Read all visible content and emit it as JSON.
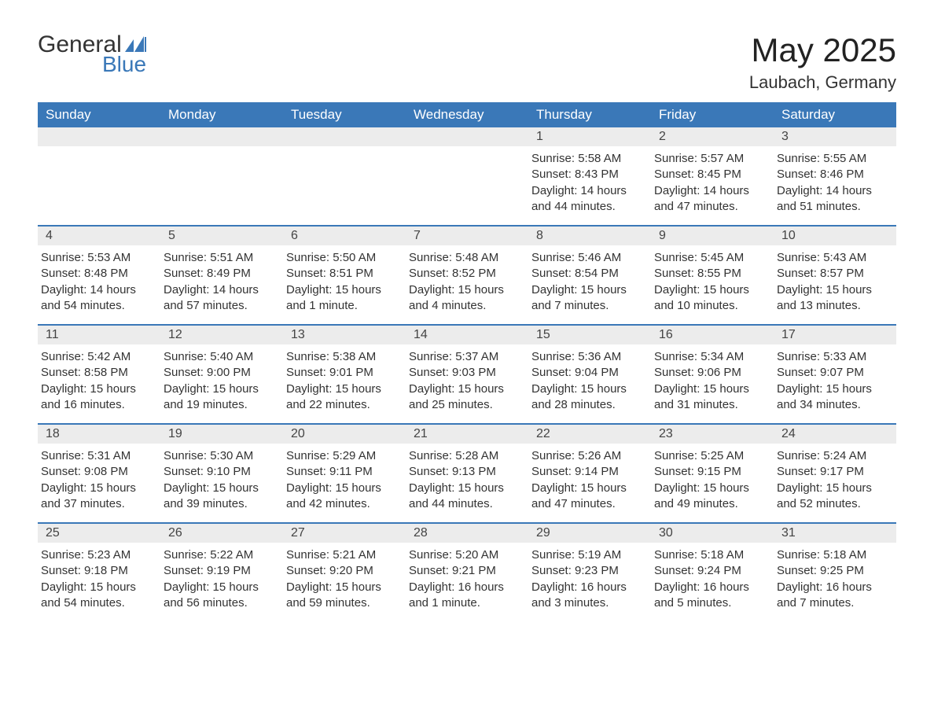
{
  "logo": {
    "general": "General",
    "blue": "Blue"
  },
  "title": "May 2025",
  "location": "Laubach, Germany",
  "colors": {
    "header_bg": "#3a78b8",
    "header_text": "#ffffff",
    "daynum_bg": "#ececec",
    "border": "#3a78b8",
    "text": "#333333",
    "logo_blue": "#3a78b8"
  },
  "weekdays": [
    "Sunday",
    "Monday",
    "Tuesday",
    "Wednesday",
    "Thursday",
    "Friday",
    "Saturday"
  ],
  "weeks": [
    [
      null,
      null,
      null,
      null,
      {
        "n": "1",
        "sunrise": "Sunrise: 5:58 AM",
        "sunset": "Sunset: 8:43 PM",
        "dl1": "Daylight: 14 hours",
        "dl2": "and 44 minutes."
      },
      {
        "n": "2",
        "sunrise": "Sunrise: 5:57 AM",
        "sunset": "Sunset: 8:45 PM",
        "dl1": "Daylight: 14 hours",
        "dl2": "and 47 minutes."
      },
      {
        "n": "3",
        "sunrise": "Sunrise: 5:55 AM",
        "sunset": "Sunset: 8:46 PM",
        "dl1": "Daylight: 14 hours",
        "dl2": "and 51 minutes."
      }
    ],
    [
      {
        "n": "4",
        "sunrise": "Sunrise: 5:53 AM",
        "sunset": "Sunset: 8:48 PM",
        "dl1": "Daylight: 14 hours",
        "dl2": "and 54 minutes."
      },
      {
        "n": "5",
        "sunrise": "Sunrise: 5:51 AM",
        "sunset": "Sunset: 8:49 PM",
        "dl1": "Daylight: 14 hours",
        "dl2": "and 57 minutes."
      },
      {
        "n": "6",
        "sunrise": "Sunrise: 5:50 AM",
        "sunset": "Sunset: 8:51 PM",
        "dl1": "Daylight: 15 hours",
        "dl2": "and 1 minute."
      },
      {
        "n": "7",
        "sunrise": "Sunrise: 5:48 AM",
        "sunset": "Sunset: 8:52 PM",
        "dl1": "Daylight: 15 hours",
        "dl2": "and 4 minutes."
      },
      {
        "n": "8",
        "sunrise": "Sunrise: 5:46 AM",
        "sunset": "Sunset: 8:54 PM",
        "dl1": "Daylight: 15 hours",
        "dl2": "and 7 minutes."
      },
      {
        "n": "9",
        "sunrise": "Sunrise: 5:45 AM",
        "sunset": "Sunset: 8:55 PM",
        "dl1": "Daylight: 15 hours",
        "dl2": "and 10 minutes."
      },
      {
        "n": "10",
        "sunrise": "Sunrise: 5:43 AM",
        "sunset": "Sunset: 8:57 PM",
        "dl1": "Daylight: 15 hours",
        "dl2": "and 13 minutes."
      }
    ],
    [
      {
        "n": "11",
        "sunrise": "Sunrise: 5:42 AM",
        "sunset": "Sunset: 8:58 PM",
        "dl1": "Daylight: 15 hours",
        "dl2": "and 16 minutes."
      },
      {
        "n": "12",
        "sunrise": "Sunrise: 5:40 AM",
        "sunset": "Sunset: 9:00 PM",
        "dl1": "Daylight: 15 hours",
        "dl2": "and 19 minutes."
      },
      {
        "n": "13",
        "sunrise": "Sunrise: 5:38 AM",
        "sunset": "Sunset: 9:01 PM",
        "dl1": "Daylight: 15 hours",
        "dl2": "and 22 minutes."
      },
      {
        "n": "14",
        "sunrise": "Sunrise: 5:37 AM",
        "sunset": "Sunset: 9:03 PM",
        "dl1": "Daylight: 15 hours",
        "dl2": "and 25 minutes."
      },
      {
        "n": "15",
        "sunrise": "Sunrise: 5:36 AM",
        "sunset": "Sunset: 9:04 PM",
        "dl1": "Daylight: 15 hours",
        "dl2": "and 28 minutes."
      },
      {
        "n": "16",
        "sunrise": "Sunrise: 5:34 AM",
        "sunset": "Sunset: 9:06 PM",
        "dl1": "Daylight: 15 hours",
        "dl2": "and 31 minutes."
      },
      {
        "n": "17",
        "sunrise": "Sunrise: 5:33 AM",
        "sunset": "Sunset: 9:07 PM",
        "dl1": "Daylight: 15 hours",
        "dl2": "and 34 minutes."
      }
    ],
    [
      {
        "n": "18",
        "sunrise": "Sunrise: 5:31 AM",
        "sunset": "Sunset: 9:08 PM",
        "dl1": "Daylight: 15 hours",
        "dl2": "and 37 minutes."
      },
      {
        "n": "19",
        "sunrise": "Sunrise: 5:30 AM",
        "sunset": "Sunset: 9:10 PM",
        "dl1": "Daylight: 15 hours",
        "dl2": "and 39 minutes."
      },
      {
        "n": "20",
        "sunrise": "Sunrise: 5:29 AM",
        "sunset": "Sunset: 9:11 PM",
        "dl1": "Daylight: 15 hours",
        "dl2": "and 42 minutes."
      },
      {
        "n": "21",
        "sunrise": "Sunrise: 5:28 AM",
        "sunset": "Sunset: 9:13 PM",
        "dl1": "Daylight: 15 hours",
        "dl2": "and 44 minutes."
      },
      {
        "n": "22",
        "sunrise": "Sunrise: 5:26 AM",
        "sunset": "Sunset: 9:14 PM",
        "dl1": "Daylight: 15 hours",
        "dl2": "and 47 minutes."
      },
      {
        "n": "23",
        "sunrise": "Sunrise: 5:25 AM",
        "sunset": "Sunset: 9:15 PM",
        "dl1": "Daylight: 15 hours",
        "dl2": "and 49 minutes."
      },
      {
        "n": "24",
        "sunrise": "Sunrise: 5:24 AM",
        "sunset": "Sunset: 9:17 PM",
        "dl1": "Daylight: 15 hours",
        "dl2": "and 52 minutes."
      }
    ],
    [
      {
        "n": "25",
        "sunrise": "Sunrise: 5:23 AM",
        "sunset": "Sunset: 9:18 PM",
        "dl1": "Daylight: 15 hours",
        "dl2": "and 54 minutes."
      },
      {
        "n": "26",
        "sunrise": "Sunrise: 5:22 AM",
        "sunset": "Sunset: 9:19 PM",
        "dl1": "Daylight: 15 hours",
        "dl2": "and 56 minutes."
      },
      {
        "n": "27",
        "sunrise": "Sunrise: 5:21 AM",
        "sunset": "Sunset: 9:20 PM",
        "dl1": "Daylight: 15 hours",
        "dl2": "and 59 minutes."
      },
      {
        "n": "28",
        "sunrise": "Sunrise: 5:20 AM",
        "sunset": "Sunset: 9:21 PM",
        "dl1": "Daylight: 16 hours",
        "dl2": "and 1 minute."
      },
      {
        "n": "29",
        "sunrise": "Sunrise: 5:19 AM",
        "sunset": "Sunset: 9:23 PM",
        "dl1": "Daylight: 16 hours",
        "dl2": "and 3 minutes."
      },
      {
        "n": "30",
        "sunrise": "Sunrise: 5:18 AM",
        "sunset": "Sunset: 9:24 PM",
        "dl1": "Daylight: 16 hours",
        "dl2": "and 5 minutes."
      },
      {
        "n": "31",
        "sunrise": "Sunrise: 5:18 AM",
        "sunset": "Sunset: 9:25 PM",
        "dl1": "Daylight: 16 hours",
        "dl2": "and 7 minutes."
      }
    ]
  ]
}
